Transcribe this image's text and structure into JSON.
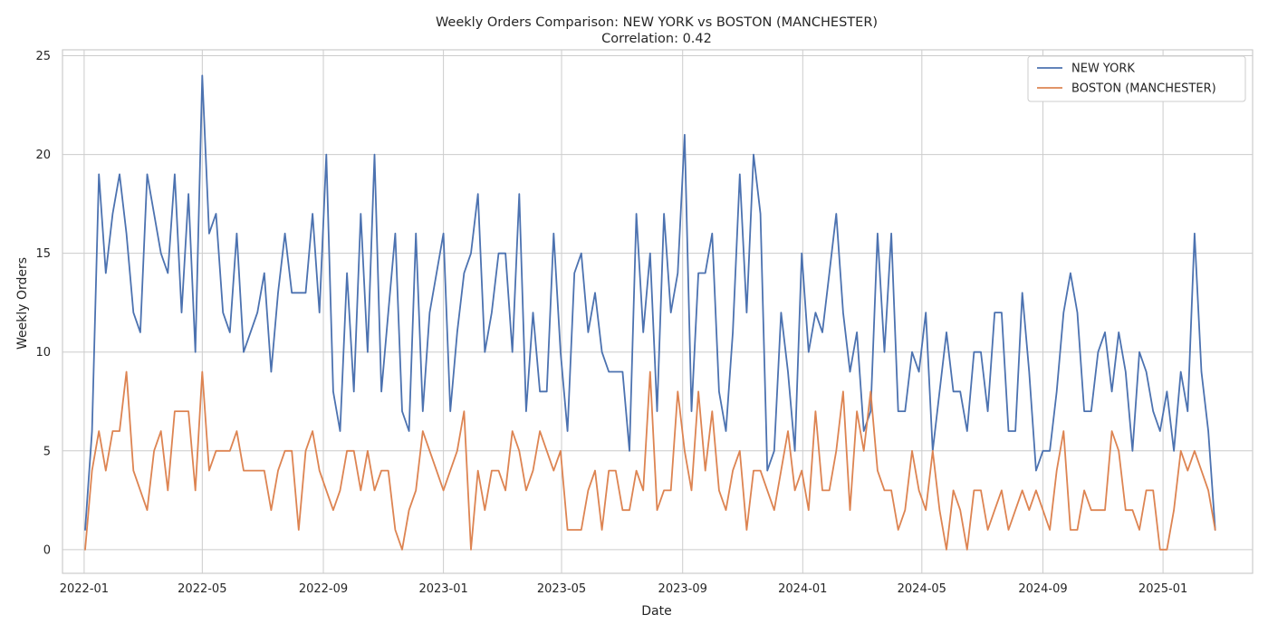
{
  "chart_data": {
    "type": "line",
    "title": "Weekly Orders Comparison: NEW YORK vs BOSTON (MANCHESTER)",
    "subtitle": "Correlation: 0.42",
    "xlabel": "Date",
    "ylabel": "Weekly Orders",
    "ylim": [
      -1.2,
      25.3
    ],
    "xlim": [
      "2021-12-10",
      "2025-04-02"
    ],
    "x_start": "2022-01-02",
    "x_step_days": 7,
    "x_ticks": [
      "2022-01",
      "2022-05",
      "2022-09",
      "2023-01",
      "2023-05",
      "2023-09",
      "2024-01",
      "2024-05",
      "2024-09",
      "2025-01"
    ],
    "y_ticks": [
      0,
      5,
      10,
      15,
      20,
      25
    ],
    "grid": true,
    "legend_position": "top-right",
    "colors": {
      "NEW YORK": "#4c72b0",
      "BOSTON (MANCHESTER)": "#dd8452"
    },
    "series": [
      {
        "name": "NEW YORK",
        "color": "#4c72b0",
        "values": [
          1,
          6,
          19,
          14,
          17,
          19,
          16,
          12,
          11,
          19,
          17,
          15,
          14,
          19,
          12,
          18,
          10,
          24,
          16,
          17,
          12,
          11,
          16,
          10,
          11,
          12,
          14,
          9,
          13,
          16,
          13,
          13,
          13,
          17,
          12,
          20,
          8,
          6,
          14,
          8,
          17,
          10,
          20,
          8,
          12,
          16,
          7,
          6,
          16,
          7,
          12,
          14,
          16,
          7,
          11,
          14,
          15,
          18,
          10,
          12,
          15,
          15,
          10,
          18,
          7,
          12,
          8,
          8,
          16,
          10,
          6,
          14,
          15,
          11,
          13,
          10,
          9,
          9,
          9,
          5,
          17,
          11,
          15,
          7,
          17,
          12,
          14,
          21,
          7,
          14,
          14,
          16,
          8,
          6,
          11,
          19,
          12,
          20,
          17,
          4,
          5,
          12,
          9,
          5,
          15,
          10,
          12,
          11,
          14,
          17,
          12,
          9,
          11,
          6,
          7,
          16,
          10,
          16,
          7,
          7,
          10,
          9,
          12,
          5,
          8,
          11,
          8,
          8,
          6,
          10,
          10,
          7,
          12,
          12,
          6,
          6,
          13,
          9,
          4,
          5,
          5,
          8,
          12,
          14,
          12,
          7,
          7,
          10,
          11,
          8,
          11,
          9,
          5,
          10,
          9,
          7,
          6,
          8,
          5,
          9,
          7,
          16,
          9,
          6,
          1
        ]
      },
      {
        "name": "BOSTON (MANCHESTER)",
        "color": "#dd8452",
        "values": [
          0,
          4,
          6,
          4,
          6,
          6,
          9,
          4,
          3,
          2,
          5,
          6,
          3,
          7,
          7,
          7,
          3,
          9,
          4,
          5,
          5,
          5,
          6,
          4,
          4,
          4,
          4,
          2,
          4,
          5,
          5,
          1,
          5,
          6,
          4,
          3,
          2,
          3,
          5,
          5,
          3,
          5,
          3,
          4,
          4,
          1,
          0,
          2,
          3,
          6,
          5,
          4,
          3,
          4,
          5,
          7,
          0,
          4,
          2,
          4,
          4,
          3,
          6,
          5,
          3,
          4,
          6,
          5,
          4,
          5,
          1,
          1,
          1,
          3,
          4,
          1,
          4,
          4,
          2,
          2,
          4,
          3,
          9,
          2,
          3,
          3,
          8,
          5,
          3,
          8,
          4,
          7,
          3,
          2,
          4,
          5,
          1,
          4,
          4,
          3,
          2,
          4,
          6,
          3,
          4,
          2,
          7,
          3,
          3,
          5,
          8,
          2,
          7,
          5,
          8,
          4,
          3,
          3,
          1,
          2,
          5,
          3,
          2,
          5,
          2,
          0,
          3,
          2,
          0,
          3,
          3,
          1,
          2,
          3,
          1,
          2,
          3,
          2,
          3,
          2,
          1,
          4,
          6,
          1,
          1,
          3,
          2,
          2,
          2,
          6,
          5,
          2,
          2,
          1,
          3,
          3,
          0,
          0,
          2,
          5,
          4,
          5,
          4,
          3,
          1
        ]
      }
    ]
  }
}
